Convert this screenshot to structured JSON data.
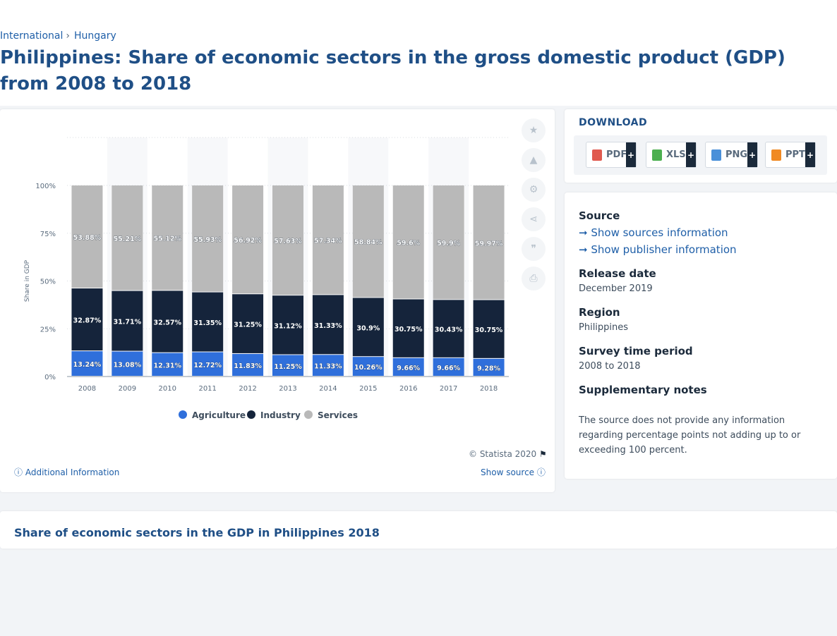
{
  "breadcrumb": {
    "item1": "International",
    "sep": "›",
    "item2": "Hungary"
  },
  "page_title": "Philippines: Share of economic sectors in the gross domestic product (GDP) from 2008 to 2018",
  "tools": [
    "star-icon",
    "bell-icon",
    "gear-icon",
    "share-icon",
    "quote-icon",
    "print-icon"
  ],
  "download": {
    "title": "DOWNLOAD",
    "buttons": [
      {
        "label": "PDF",
        "color": "#e05a4f"
      },
      {
        "label": "XLS",
        "color": "#4caf50"
      },
      {
        "label": "PNG",
        "color": "#4a90d9"
      },
      {
        "label": "PPT",
        "color": "#f08a24"
      }
    ],
    "plus": "+"
  },
  "info": {
    "source_label": "Source",
    "show_sources": "Show sources information",
    "show_publisher": "Show publisher information",
    "release_label": "Release date",
    "release_value": "December 2019",
    "region_label": "Region",
    "region_value": "Philippines",
    "survey_label": "Survey time period",
    "survey_value": "2008 to 2018",
    "notes_label": "Supplementary notes",
    "notes_value": "The source does not provide any information regarding percentage points not adding up to or exceeding 100 percent."
  },
  "chart_footer": {
    "copyright": "© Statista 2020",
    "additional": "Additional Information",
    "show_source": "Show source"
  },
  "bottom_title": "Share of economic sectors in the GDP in Philippines 2018",
  "chart_data": {
    "type": "bar",
    "stacked": true,
    "ylabel": "Share in GDP",
    "ylim": [
      0,
      100
    ],
    "yticks": [
      "0%",
      "25%",
      "50%",
      "75%",
      "100%"
    ],
    "categories": [
      "2008",
      "2009",
      "2010",
      "2011",
      "2012",
      "2013",
      "2014",
      "2015",
      "2016",
      "2017",
      "2018"
    ],
    "series": [
      {
        "name": "Agriculture",
        "color": "#2f6fdb",
        "values": [
          13.24,
          13.08,
          12.31,
          12.72,
          11.83,
          11.25,
          11.33,
          10.26,
          9.66,
          9.66,
          9.28
        ],
        "labels": [
          "13.24%",
          "13.08%",
          "12.31%",
          "12.72%",
          "11.83%",
          "11.25%",
          "11.33%",
          "10.26%",
          "9.66%",
          "9.66%",
          "9.28%"
        ]
      },
      {
        "name": "Industry",
        "color": "#15243b",
        "values": [
          32.87,
          31.71,
          32.57,
          31.35,
          31.25,
          31.12,
          31.33,
          30.9,
          30.75,
          30.43,
          30.75
        ],
        "labels": [
          "32.87%",
          "31.71%",
          "32.57%",
          "31.35%",
          "31.25%",
          "31.12%",
          "31.33%",
          "30.9%",
          "30.75%",
          "30.43%",
          "30.75%"
        ]
      },
      {
        "name": "Services",
        "color": "#b9b9b9",
        "values": [
          53.88,
          55.21,
          55.12,
          55.93,
          56.92,
          57.63,
          57.34,
          58.84,
          59.6,
          59.9,
          59.97
        ],
        "labels": [
          "53.88%",
          "55.21%",
          "55.12%",
          "55.93%",
          "56.92%",
          "57.63%",
          "57.34%",
          "58.84%",
          "59.6%",
          "59.9%",
          "59.97%"
        ]
      }
    ],
    "grid": true,
    "legend": "bottom"
  }
}
